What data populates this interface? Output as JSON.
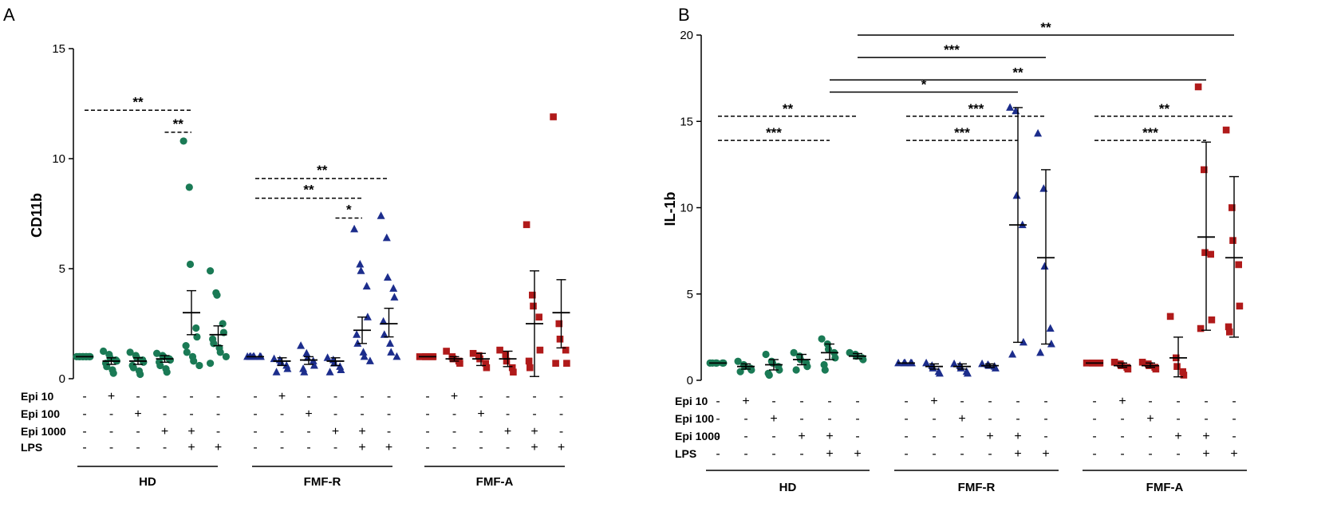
{
  "chart_data": [
    {
      "type": "scatter",
      "panel": "A",
      "ylabel": "CD11b",
      "ylim": [
        0,
        15
      ],
      "yticks": [
        0,
        5,
        10,
        15
      ],
      "row_labels": [
        "Epi 10",
        "Epi 100",
        "Epi 1000",
        "LPS"
      ],
      "conditions": [
        {
          "epi10": "-",
          "epi100": "-",
          "epi1000": "-",
          "lps": "-"
        },
        {
          "epi10": "+",
          "epi100": "-",
          "epi1000": "-",
          "lps": "-"
        },
        {
          "epi10": "-",
          "epi100": "+",
          "epi1000": "-",
          "lps": "-"
        },
        {
          "epi10": "-",
          "epi100": "-",
          "epi1000": "+",
          "lps": "-"
        },
        {
          "epi10": "-",
          "epi100": "-",
          "epi1000": "+",
          "lps": "+"
        },
        {
          "epi10": "-",
          "epi100": "-",
          "epi1000": "-",
          "lps": "+"
        }
      ],
      "groups": [
        {
          "name": "HD",
          "color": "#1a7a55",
          "marker": "circle",
          "columns": [
            {
              "mean": 1.0,
              "err": [
                1.0,
                1.0
              ],
              "points": [
                1,
                1,
                1,
                1,
                1,
                1,
                1,
                1,
                1
              ]
            },
            {
              "mean": 0.8,
              "err": [
                0.65,
                0.95
              ],
              "points": [
                1.25,
                1.1,
                0.95,
                0.85,
                0.8,
                0.7,
                0.55,
                0.4,
                0.25
              ]
            },
            {
              "mean": 0.8,
              "err": [
                0.65,
                0.95
              ],
              "points": [
                1.2,
                1.05,
                0.95,
                0.85,
                0.75,
                0.6,
                0.5,
                0.35,
                0.2
              ]
            },
            {
              "mean": 0.9,
              "err": [
                0.75,
                1.05
              ],
              "points": [
                1.15,
                1.05,
                1.0,
                0.9,
                0.85,
                0.75,
                0.6,
                0.45,
                0.3
              ]
            },
            {
              "mean": 3.0,
              "err": [
                2.0,
                4.0
              ],
              "points": [
                10.8,
                8.7,
                5.2,
                2.3,
                1.9,
                1.5,
                1.2,
                1.0,
                0.8,
                0.6
              ]
            },
            {
              "mean": 2.0,
              "err": [
                1.5,
                2.4
              ],
              "points": [
                4.9,
                3.9,
                3.8,
                2.5,
                2.1,
                1.8,
                1.6,
                1.4,
                1.2,
                1.0,
                0.7
              ]
            }
          ]
        },
        {
          "name": "FMF-R",
          "color": "#1c2d8c",
          "marker": "triangle",
          "columns": [
            {
              "mean": 1.0,
              "err": [
                1.0,
                1.0
              ],
              "points": [
                1,
                1,
                1,
                1,
                1,
                1,
                1
              ]
            },
            {
              "mean": 0.8,
              "err": [
                0.6,
                0.95
              ],
              "points": [
                0.9,
                0.85,
                0.75,
                0.6,
                0.45,
                0.3
              ]
            },
            {
              "mean": 0.85,
              "err": [
                0.65,
                1.0
              ],
              "points": [
                1.5,
                1.15,
                0.95,
                0.8,
                0.6,
                0.45,
                0.3
              ]
            },
            {
              "mean": 0.8,
              "err": [
                0.6,
                0.95
              ],
              "points": [
                0.95,
                0.85,
                0.7,
                0.55,
                0.4,
                0.3
              ]
            },
            {
              "mean": 2.2,
              "err": [
                1.6,
                2.8
              ],
              "points": [
                6.8,
                5.2,
                4.9,
                4.2,
                2.8,
                2.0,
                1.6,
                1.2,
                1.0,
                0.8
              ]
            },
            {
              "mean": 2.5,
              "err": [
                1.9,
                3.2
              ],
              "points": [
                7.4,
                6.4,
                4.6,
                4.1,
                3.7,
                2.6,
                2.0,
                1.6,
                1.2,
                1.0
              ]
            }
          ]
        },
        {
          "name": "FMF-A",
          "color": "#b01a1a",
          "marker": "square",
          "columns": [
            {
              "mean": 1.0,
              "err": [
                1.0,
                1.0
              ],
              "points": [
                1,
                1,
                1,
                1,
                1
              ]
            },
            {
              "mean": 0.9,
              "err": [
                0.8,
                1.0
              ],
              "points": [
                1.25,
                1.0,
                0.9,
                0.8,
                0.7
              ]
            },
            {
              "mean": 0.9,
              "err": [
                0.6,
                1.15
              ],
              "points": [
                1.15,
                1.05,
                0.9,
                0.7,
                0.5
              ]
            },
            {
              "mean": 0.9,
              "err": [
                0.55,
                1.25
              ],
              "points": [
                1.3,
                1.1,
                0.8,
                0.5,
                0.3
              ]
            },
            {
              "mean": 2.5,
              "err": [
                0.1,
                4.9
              ],
              "points": [
                7.0,
                3.8,
                3.3,
                2.8,
                1.3,
                0.8,
                0.5
              ]
            },
            {
              "mean": 3.0,
              "err": [
                1.4,
                4.5
              ],
              "points": [
                11.9,
                2.5,
                1.8,
                1.3,
                0.7,
                0.7
              ]
            }
          ]
        }
      ],
      "significance": [
        {
          "label": "**",
          "from": [
            0,
            0
          ],
          "to": [
            0,
            4
          ],
          "y": 12.2,
          "style": "dashed"
        },
        {
          "label": "**",
          "from": [
            0,
            3
          ],
          "to": [
            0,
            4
          ],
          "y": 11.2,
          "style": "dashed"
        },
        {
          "label": "**",
          "from": [
            1,
            0
          ],
          "to": [
            1,
            5
          ],
          "y": 9.1,
          "style": "dashed"
        },
        {
          "label": "**",
          "from": [
            1,
            0
          ],
          "to": [
            1,
            4
          ],
          "y": 8.2,
          "style": "dashed"
        },
        {
          "label": "*",
          "from": [
            1,
            3
          ],
          "to": [
            1,
            4
          ],
          "y": 7.3,
          "style": "dashed"
        }
      ]
    },
    {
      "type": "scatter",
      "panel": "B",
      "ylabel": "IL-1b",
      "ylim": [
        0,
        20
      ],
      "yticks": [
        0,
        5,
        10,
        15,
        20
      ],
      "row_labels": [
        "Epi 10",
        "Epi 100",
        "Epi 1000",
        "LPS"
      ],
      "conditions": [
        {
          "epi10": "-",
          "epi100": "-",
          "epi1000": "-",
          "lps": "-"
        },
        {
          "epi10": "+",
          "epi100": "-",
          "epi1000": "-",
          "lps": "-"
        },
        {
          "epi10": "-",
          "epi100": "+",
          "epi1000": "-",
          "lps": "-"
        },
        {
          "epi10": "-",
          "epi100": "-",
          "epi1000": "+",
          "lps": "-"
        },
        {
          "epi10": "-",
          "epi100": "-",
          "epi1000": "+",
          "lps": "+"
        },
        {
          "epi10": "-",
          "epi100": "-",
          "epi1000": "-",
          "lps": "+"
        }
      ],
      "groups": [
        {
          "name": "HD",
          "color": "#1a7a55",
          "marker": "circle",
          "columns": [
            {
              "mean": 1.0,
              "err": [
                1.0,
                1.0
              ],
              "points": [
                1,
                1,
                1,
                1,
                1,
                1
              ]
            },
            {
              "mean": 0.8,
              "err": [
                0.65,
                0.95
              ],
              "points": [
                1.1,
                0.9,
                0.8,
                0.7,
                0.6,
                0.5
              ]
            },
            {
              "mean": 0.9,
              "err": [
                0.6,
                1.2
              ],
              "points": [
                1.5,
                1.1,
                1.0,
                0.8,
                0.6,
                0.4,
                0.3
              ]
            },
            {
              "mean": 1.2,
              "err": [
                0.9,
                1.5
              ],
              "points": [
                1.6,
                1.4,
                1.2,
                1.0,
                0.8,
                0.6
              ]
            },
            {
              "mean": 1.6,
              "err": [
                1.2,
                2.1
              ],
              "points": [
                2.4,
                2.1,
                1.8,
                1.6,
                1.3,
                0.9,
                0.6
              ]
            },
            {
              "mean": 1.4,
              "err": [
                1.25,
                1.55
              ],
              "points": [
                1.6,
                1.5,
                1.4,
                1.3,
                1.2
              ]
            }
          ]
        },
        {
          "name": "FMF-R",
          "color": "#1c2d8c",
          "marker": "triangle",
          "columns": [
            {
              "mean": 1.0,
              "err": [
                1.0,
                1.0
              ],
              "points": [
                1,
                1,
                1,
                1,
                1
              ]
            },
            {
              "mean": 0.8,
              "err": [
                0.65,
                0.95
              ],
              "points": [
                1.0,
                0.85,
                0.7,
                0.5,
                0.4
              ]
            },
            {
              "mean": 0.8,
              "err": [
                0.65,
                0.95
              ],
              "points": [
                0.95,
                0.85,
                0.7,
                0.5,
                0.4
              ]
            },
            {
              "mean": 0.85,
              "err": [
                0.75,
                0.95
              ],
              "points": [
                0.95,
                0.9,
                0.85,
                0.8,
                0.7
              ]
            },
            {
              "mean": 9.0,
              "err": [
                2.2,
                15.8
              ],
              "points": [
                15.8,
                15.6,
                10.7,
                9.0,
                2.2,
                1.5
              ]
            },
            {
              "mean": 7.1,
              "err": [
                2.1,
                12.2
              ],
              "points": [
                14.3,
                11.1,
                6.6,
                3.0,
                2.1,
                1.6
              ]
            }
          ]
        },
        {
          "name": "FMF-A",
          "color": "#b01a1a",
          "marker": "square",
          "columns": [
            {
              "mean": 1.0,
              "err": [
                1.0,
                1.0
              ],
              "points": [
                1,
                1,
                1,
                1,
                1
              ]
            },
            {
              "mean": 0.85,
              "err": [
                0.75,
                1.0
              ],
              "points": [
                1.05,
                0.95,
                0.85,
                0.75,
                0.65
              ]
            },
            {
              "mean": 0.85,
              "err": [
                0.75,
                1.0
              ],
              "points": [
                1.05,
                0.95,
                0.85,
                0.75,
                0.65
              ]
            },
            {
              "mean": 1.3,
              "err": [
                0.2,
                2.5
              ],
              "points": [
                3.7,
                1.3,
                0.8,
                0.5,
                0.3
              ]
            },
            {
              "mean": 8.3,
              "err": [
                2.9,
                13.8
              ],
              "points": [
                17.0,
                12.2,
                7.4,
                7.3,
                3.5,
                3.0
              ]
            },
            {
              "mean": 7.1,
              "err": [
                2.5,
                11.8
              ],
              "points": [
                14.5,
                10.0,
                8.1,
                6.7,
                4.3,
                3.1,
                2.8
              ]
            }
          ]
        }
      ],
      "significance": [
        {
          "label": "**",
          "from": [
            0,
            0
          ],
          "to": [
            0,
            5
          ],
          "y": 15.3,
          "style": "dashed"
        },
        {
          "label": "***",
          "from": [
            0,
            0
          ],
          "to": [
            0,
            4
          ],
          "y": 13.9,
          "style": "dashed"
        },
        {
          "label": "***",
          "from": [
            1,
            0
          ],
          "to": [
            1,
            5
          ],
          "y": 15.3,
          "style": "dashed"
        },
        {
          "label": "***",
          "from": [
            1,
            0
          ],
          "to": [
            1,
            4
          ],
          "y": 13.9,
          "style": "dashed"
        },
        {
          "label": "**",
          "from": [
            2,
            0
          ],
          "to": [
            2,
            5
          ],
          "y": 15.3,
          "style": "dashed"
        },
        {
          "label": "***",
          "from": [
            2,
            0
          ],
          "to": [
            2,
            4
          ],
          "y": 13.9,
          "style": "dashed"
        },
        {
          "label": "**",
          "from": [
            0,
            5
          ],
          "to": [
            2,
            5
          ],
          "y": 20.0,
          "style": "solid"
        },
        {
          "label": "***",
          "from": [
            0,
            5
          ],
          "to": [
            1,
            5
          ],
          "y": 18.7,
          "style": "solid"
        },
        {
          "label": "**",
          "from": [
            0,
            4
          ],
          "to": [
            2,
            4
          ],
          "y": 17.4,
          "style": "solid"
        },
        {
          "label": "*",
          "from": [
            0,
            4
          ],
          "to": [
            1,
            4
          ],
          "y": 16.7,
          "style": "solid"
        }
      ]
    }
  ]
}
